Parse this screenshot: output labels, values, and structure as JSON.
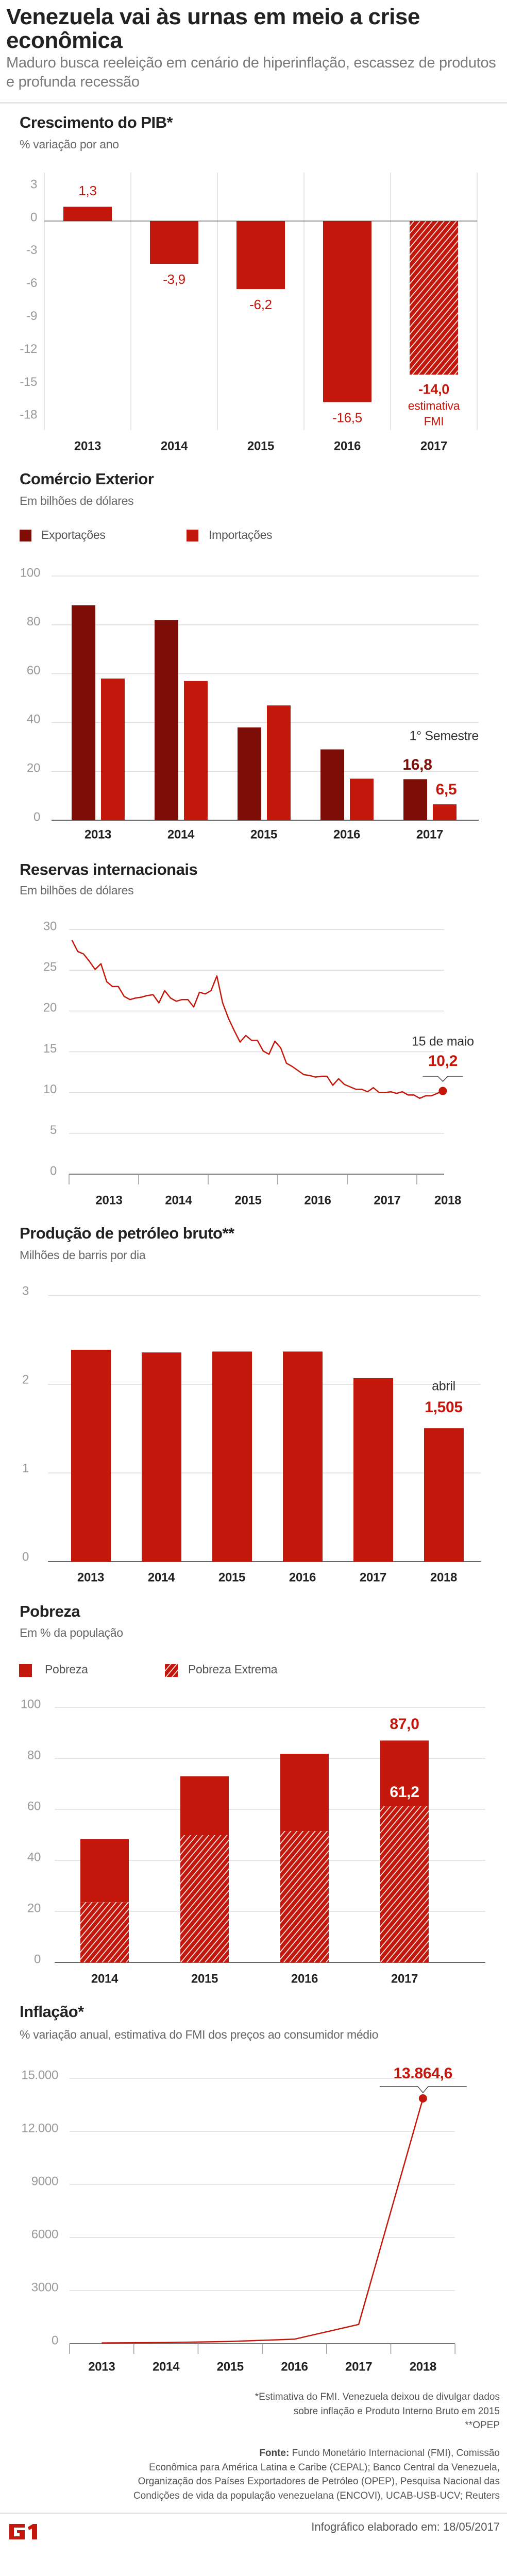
{
  "header": {
    "title": "Venezuela vai às urnas em meio a crise econômica",
    "subtitle": "Maduro busca reeleição em cenário de hiperinflação, escassez de produtos e profunda recessão"
  },
  "colors": {
    "red": "#c4170c",
    "dark_red": "#7f0d07",
    "text": "#222222",
    "grid": "#dddddd"
  },
  "chart_data": [
    {
      "type": "bar",
      "title": "Crescimento do PIB*",
      "subtitle": "% variação por ano",
      "categories": [
        "2013",
        "2014",
        "2015",
        "2016",
        "2017"
      ],
      "values": [
        1.3,
        -3.9,
        -6.2,
        -16.5,
        -14.0
      ],
      "value_labels": [
        "1,3",
        "-3,9",
        "-6,2",
        "-16,5",
        "-14,0"
      ],
      "hatched_category": "2017",
      "annotation": [
        "estimativa",
        "FMI"
      ],
      "yticks": [
        3,
        0,
        -3,
        -6,
        -9,
        -12,
        -15,
        -18
      ],
      "ylim": [
        -18,
        3
      ],
      "grid": "vertical"
    },
    {
      "type": "bar",
      "title": "Comércio Exterior",
      "subtitle": "Em bilhões de dólares",
      "categories": [
        "2013",
        "2014",
        "2015",
        "2016",
        "2017"
      ],
      "series": [
        {
          "name": "Exportações",
          "values": [
            88,
            82,
            38,
            29,
            16.8
          ],
          "color": "#7f0d07"
        },
        {
          "name": "Importações",
          "values": [
            58,
            57,
            47,
            17,
            6.5
          ],
          "color": "#c4170c"
        }
      ],
      "value_labels": {
        "Exportações": "16,8",
        "Importações": "6,5"
      },
      "annotation": "1° Semestre",
      "yticks": [
        0,
        20,
        40,
        60,
        80,
        100
      ],
      "ylim": [
        0,
        100
      ],
      "legend": "top-left",
      "grid": "horizontal"
    },
    {
      "type": "line",
      "title": "Reservas internacionais",
      "subtitle": "Em bilhões de dólares",
      "x": [
        "2013-01",
        "2013-02",
        "2013-03",
        "2013-04",
        "2013-05",
        "2013-06",
        "2013-07",
        "2013-08",
        "2013-09",
        "2013-10",
        "2013-11",
        "2013-12",
        "2014-01",
        "2014-02",
        "2014-03",
        "2014-04",
        "2014-05",
        "2014-06",
        "2014-07",
        "2014-08",
        "2014-09",
        "2014-10",
        "2014-11",
        "2014-12",
        "2015-01",
        "2015-02",
        "2015-03",
        "2015-04",
        "2015-05",
        "2015-06",
        "2015-07",
        "2015-08",
        "2015-09",
        "2015-10",
        "2015-11",
        "2015-12",
        "2016-01",
        "2016-02",
        "2016-03",
        "2016-04",
        "2016-05",
        "2016-06",
        "2016-07",
        "2016-08",
        "2016-09",
        "2016-10",
        "2016-11",
        "2016-12",
        "2017-01",
        "2017-02",
        "2017-03",
        "2017-04",
        "2017-05",
        "2017-06",
        "2017-07",
        "2017-08",
        "2017-09",
        "2017-10",
        "2017-11",
        "2017-12",
        "2018-01",
        "2018-02",
        "2018-03",
        "2018-04",
        "2018-05-15"
      ],
      "values": [
        28.7,
        27.3,
        27.0,
        26.1,
        25.1,
        25.8,
        23.6,
        23.0,
        23.0,
        21.8,
        21.4,
        21.6,
        21.7,
        21.9,
        22.0,
        21.0,
        22.5,
        21.6,
        21.2,
        21.4,
        21.4,
        20.5,
        22.3,
        22.1,
        22.5,
        24.3,
        21.0,
        19.1,
        17.6,
        16.2,
        17.0,
        16.4,
        16.4,
        15.1,
        14.7,
        16.3,
        15.5,
        13.6,
        13.2,
        12.7,
        12.2,
        12.1,
        11.9,
        12.0,
        12.0,
        10.9,
        11.7,
        11.0,
        10.7,
        10.4,
        10.4,
        10.1,
        10.6,
        10.0,
        10.0,
        10.1,
        9.9,
        10.1,
        9.7,
        9.7,
        9.3,
        9.6,
        9.6,
        9.9,
        10.2
      ],
      "xticks": [
        "2013",
        "2014",
        "2015",
        "2016",
        "2017",
        "2018"
      ],
      "yticks": [
        0,
        5,
        10,
        15,
        20,
        25,
        30
      ],
      "ylim": [
        0,
        30
      ],
      "annotation": {
        "date": "15 de maio",
        "value": "10,2"
      },
      "grid": "horizontal"
    },
    {
      "type": "bar",
      "title": "Produção de petróleo bruto**",
      "subtitle": "Milhões de barris por dia",
      "categories": [
        "2013",
        "2014",
        "2015",
        "2016",
        "2017",
        "2018"
      ],
      "values": [
        2.39,
        2.36,
        2.37,
        2.37,
        2.07,
        1.505
      ],
      "annotation": {
        "period": "abril",
        "value": "1,505"
      },
      "yticks": [
        0,
        1,
        2,
        3
      ],
      "ylim": [
        0,
        3
      ],
      "grid": "horizontal"
    },
    {
      "type": "bar",
      "title": "Pobreza",
      "subtitle": "Em % da população",
      "categories": [
        "2014",
        "2015",
        "2016",
        "2017"
      ],
      "series": [
        {
          "name": "Pobreza",
          "values": [
            48.4,
            73.0,
            81.8,
            87.0
          ],
          "pattern": "solid"
        },
        {
          "name": "Pobreza Extrema",
          "values": [
            23.6,
            49.9,
            51.5,
            61.2
          ],
          "pattern": "hatched"
        }
      ],
      "value_labels": {
        "Pobreza": "87,0",
        "Pobreza Extrema": "61,2"
      },
      "yticks": [
        0,
        20,
        40,
        60,
        80,
        100
      ],
      "ylim": [
        0,
        100
      ],
      "legend": "top-left",
      "grid": "horizontal"
    },
    {
      "type": "line",
      "title": "Inflação*",
      "subtitle": "% variação anual, estimativa do FMI dos preços ao consumidor médio",
      "x": [
        "2013",
        "2014",
        "2015",
        "2016",
        "2017",
        "2018"
      ],
      "values": [
        40,
        62,
        122,
        254,
        1087,
        13864.6
      ],
      "yticks": [
        0,
        3000,
        6000,
        9000,
        12000,
        15000
      ],
      "ytick_labels": [
        "0",
        "3000",
        "6000",
        "9000",
        "12.000",
        "15.000"
      ],
      "ylim": [
        0,
        15000
      ],
      "annotation": "13.864,6",
      "grid": "horizontal"
    }
  ],
  "footer": {
    "notes": [
      "*Estimativa do FMI. Venezuela deixou de divulgar dados",
      "sobre inflação e Produto Interno Bruto em 2015",
      "**OPEP"
    ],
    "source_label": "Fonte:",
    "source_lines": [
      " Fundo Monetário Internacional (FMI), Comissão",
      "Econômica para América Latina e Caribe (CEPAL); Banco Central da Venezuela,",
      "Organização dos Países Exportadores de Petróleo (OPEP), Pesquisa Nacional das",
      "Condições de vida da população venezuelana (ENCOVI), UCAB-USB-UCV; Reuters"
    ],
    "made": "Infográfico elaborado em: 18/05/2017",
    "logo": "G1"
  }
}
